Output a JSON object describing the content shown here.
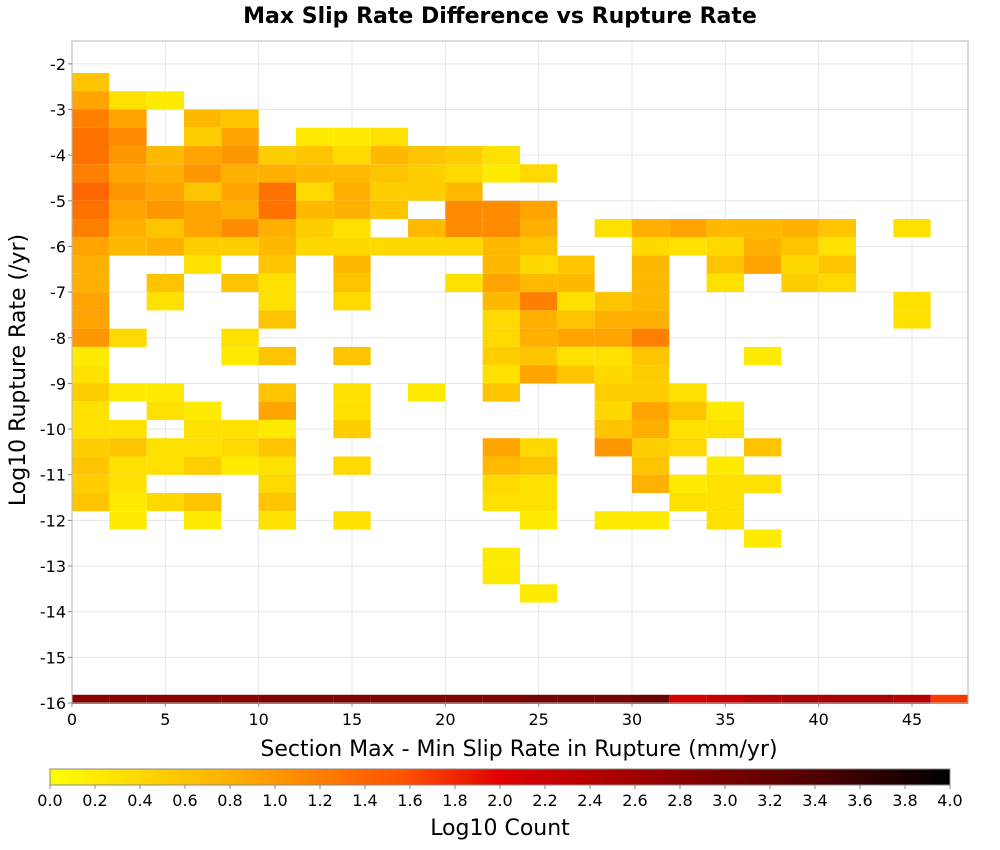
{
  "chart_data": {
    "type": "heatmap",
    "title": "Max Slip Rate Difference vs Rupture Rate",
    "xlabel": "Section Max - Min Slip Rate in Rupture (mm/yr)",
    "ylabel": "Log10 Rupture Rate (/yr)",
    "xlim": [
      0,
      48
    ],
    "ylim": [
      -16,
      -1.5
    ],
    "x_ticks": [
      0,
      5,
      10,
      15,
      20,
      25,
      30,
      35,
      40,
      45
    ],
    "y_ticks": [
      -2,
      -3,
      -4,
      -5,
      -6,
      -7,
      -8,
      -9,
      -10,
      -11,
      -12,
      -13,
      -14,
      -15,
      -16
    ],
    "bin_width": 2,
    "bin_height": 0.4,
    "grid": true,
    "colorbar": {
      "label": "Log10 Count",
      "range": [
        0.0,
        4.0
      ],
      "ticks": [
        "0.0",
        "0.2",
        "0.4",
        "0.6",
        "0.8",
        "1.0",
        "1.2",
        "1.4",
        "1.6",
        "1.8",
        "2.0",
        "2.2",
        "2.4",
        "2.6",
        "2.8",
        "3.0",
        "3.2",
        "3.4",
        "3.6",
        "3.8",
        "4.0"
      ],
      "stops": [
        {
          "v": 0.0,
          "color": "#ffff00"
        },
        {
          "v": 0.8,
          "color": "#ffb000"
        },
        {
          "v": 1.6,
          "color": "#ff4d00"
        },
        {
          "v": 2.0,
          "color": "#e00000"
        },
        {
          "v": 2.8,
          "color": "#8a0000"
        },
        {
          "v": 3.4,
          "color": "#500000"
        },
        {
          "v": 4.0,
          "color": "#000000"
        }
      ]
    },
    "bottom_row": {
      "y": -16,
      "values": [
        2.8,
        2.8,
        2.8,
        2.8,
        2.8,
        2.9,
        2.9,
        2.9,
        2.9,
        2.9,
        2.9,
        2.9,
        3.0,
        3.0,
        3.0,
        3.1,
        2.1,
        2.2,
        2.4,
        2.5,
        2.5,
        2.5,
        2.4,
        1.7
      ]
    },
    "rows": [
      {
        "y": -2.2,
        "cells": [
          [
            0,
            0.6
          ]
        ]
      },
      {
        "y": -2.6,
        "cells": [
          [
            0,
            0.9
          ],
          [
            2,
            0.3
          ],
          [
            4,
            0.2
          ]
        ]
      },
      {
        "y": -3.0,
        "cells": [
          [
            0,
            1.2
          ],
          [
            2,
            0.9
          ],
          [
            6,
            0.7
          ],
          [
            8,
            0.6
          ]
        ]
      },
      {
        "y": -3.4,
        "cells": [
          [
            0,
            1.3
          ],
          [
            2,
            1.1
          ],
          [
            6,
            0.5
          ],
          [
            8,
            0.9
          ],
          [
            12,
            0.2
          ],
          [
            14,
            0.2
          ],
          [
            16,
            0.3
          ]
        ]
      },
      {
        "y": -3.8,
        "cells": [
          [
            0,
            1.3
          ],
          [
            2,
            1.0
          ],
          [
            4,
            0.7
          ],
          [
            6,
            0.9
          ],
          [
            8,
            1.0
          ],
          [
            10,
            0.5
          ],
          [
            12,
            0.6
          ],
          [
            14,
            0.4
          ],
          [
            16,
            0.7
          ],
          [
            18,
            0.6
          ],
          [
            20,
            0.5
          ],
          [
            22,
            0.3
          ]
        ]
      },
      {
        "y": -4.2,
        "cells": [
          [
            0,
            1.2
          ],
          [
            2,
            0.9
          ],
          [
            4,
            0.8
          ],
          [
            6,
            1.0
          ],
          [
            8,
            0.8
          ],
          [
            10,
            0.8
          ],
          [
            12,
            0.7
          ],
          [
            14,
            0.7
          ],
          [
            16,
            0.6
          ],
          [
            18,
            0.5
          ],
          [
            20,
            0.4
          ],
          [
            22,
            0.2
          ],
          [
            24,
            0.4
          ]
        ]
      },
      {
        "y": -4.6,
        "cells": [
          [
            0,
            1.4
          ],
          [
            2,
            1.0
          ],
          [
            4,
            0.9
          ],
          [
            6,
            0.6
          ],
          [
            8,
            0.9
          ],
          [
            10,
            1.3
          ],
          [
            12,
            0.4
          ],
          [
            14,
            0.8
          ],
          [
            16,
            0.5
          ],
          [
            18,
            0.5
          ],
          [
            20,
            0.7
          ]
        ]
      },
      {
        "y": -5.0,
        "cells": [
          [
            0,
            1.3
          ],
          [
            2,
            0.9
          ],
          [
            4,
            1.0
          ],
          [
            6,
            0.9
          ],
          [
            8,
            0.8
          ],
          [
            10,
            1.3
          ],
          [
            12,
            0.7
          ],
          [
            14,
            0.8
          ],
          [
            16,
            0.6
          ],
          [
            20,
            1.1
          ],
          [
            22,
            1.1
          ],
          [
            24,
            0.9
          ]
        ]
      },
      {
        "y": -5.4,
        "cells": [
          [
            0,
            1.2
          ],
          [
            2,
            0.8
          ],
          [
            4,
            0.6
          ],
          [
            6,
            0.9
          ],
          [
            8,
            1.1
          ],
          [
            10,
            0.8
          ],
          [
            12,
            0.5
          ],
          [
            14,
            0.3
          ],
          [
            18,
            0.7
          ],
          [
            20,
            1.1
          ],
          [
            22,
            1.1
          ],
          [
            24,
            0.8
          ],
          [
            28,
            0.3
          ],
          [
            30,
            0.8
          ],
          [
            32,
            0.9
          ],
          [
            34,
            0.7
          ],
          [
            36,
            0.7
          ],
          [
            38,
            0.8
          ],
          [
            40,
            0.6
          ],
          [
            44,
            0.3
          ]
        ]
      },
      {
        "y": -5.8,
        "cells": [
          [
            0,
            0.9
          ],
          [
            2,
            0.7
          ],
          [
            4,
            0.8
          ],
          [
            6,
            0.5
          ],
          [
            8,
            0.5
          ],
          [
            10,
            0.7
          ],
          [
            12,
            0.4
          ],
          [
            14,
            0.4
          ],
          [
            16,
            0.4
          ],
          [
            18,
            0.4
          ],
          [
            20,
            0.4
          ],
          [
            22,
            0.7
          ],
          [
            24,
            0.6
          ],
          [
            30,
            0.4
          ],
          [
            32,
            0.3
          ],
          [
            34,
            0.4
          ],
          [
            36,
            0.8
          ],
          [
            38,
            0.6
          ],
          [
            40,
            0.3
          ]
        ]
      },
      {
        "y": -6.2,
        "cells": [
          [
            0,
            0.8
          ],
          [
            6,
            0.3
          ],
          [
            10,
            0.6
          ],
          [
            14,
            0.7
          ],
          [
            22,
            0.7
          ],
          [
            24,
            0.4
          ],
          [
            26,
            0.6
          ],
          [
            30,
            0.7
          ],
          [
            34,
            0.6
          ],
          [
            36,
            0.9
          ],
          [
            38,
            0.4
          ],
          [
            40,
            0.6
          ]
        ]
      },
      {
        "y": -6.6,
        "cells": [
          [
            0,
            0.8
          ],
          [
            4,
            0.6
          ],
          [
            8,
            0.6
          ],
          [
            10,
            0.3
          ],
          [
            14,
            0.6
          ],
          [
            20,
            0.3
          ],
          [
            22,
            0.9
          ],
          [
            24,
            0.7
          ],
          [
            26,
            0.7
          ],
          [
            30,
            0.7
          ],
          [
            34,
            0.3
          ],
          [
            38,
            0.5
          ],
          [
            40,
            0.4
          ]
        ]
      },
      {
        "y": -7.0,
        "cells": [
          [
            0,
            0.9
          ],
          [
            4,
            0.3
          ],
          [
            10,
            0.3
          ],
          [
            14,
            0.4
          ],
          [
            22,
            0.7
          ],
          [
            24,
            1.2
          ],
          [
            26,
            0.3
          ],
          [
            28,
            0.6
          ],
          [
            30,
            0.7
          ],
          [
            44,
            0.3
          ]
        ]
      },
      {
        "y": -7.4,
        "cells": [
          [
            0,
            0.9
          ],
          [
            10,
            0.6
          ],
          [
            22,
            0.4
          ],
          [
            24,
            0.8
          ],
          [
            26,
            0.6
          ],
          [
            28,
            0.8
          ],
          [
            30,
            0.8
          ],
          [
            44,
            0.3
          ]
        ]
      },
      {
        "y": -7.8,
        "cells": [
          [
            0,
            1.0
          ],
          [
            2,
            0.4
          ],
          [
            8,
            0.3
          ],
          [
            22,
            0.4
          ],
          [
            24,
            0.8
          ],
          [
            26,
            0.9
          ],
          [
            28,
            0.9
          ],
          [
            30,
            1.2
          ]
        ]
      },
      {
        "y": -8.2,
        "cells": [
          [
            0,
            0.2
          ],
          [
            8,
            0.2
          ],
          [
            10,
            0.6
          ],
          [
            14,
            0.6
          ],
          [
            22,
            0.5
          ],
          [
            24,
            0.6
          ],
          [
            26,
            0.3
          ],
          [
            28,
            0.3
          ],
          [
            30,
            0.6
          ],
          [
            36,
            0.2
          ]
        ]
      },
      {
        "y": -8.6,
        "cells": [
          [
            0,
            0.3
          ],
          [
            22,
            0.3
          ],
          [
            24,
            0.9
          ],
          [
            26,
            0.6
          ],
          [
            28,
            0.4
          ],
          [
            30,
            0.5
          ]
        ]
      },
      {
        "y": -9.0,
        "cells": [
          [
            0,
            0.5
          ],
          [
            2,
            0.2
          ],
          [
            4,
            0.2
          ],
          [
            10,
            0.6
          ],
          [
            14,
            0.3
          ],
          [
            18,
            0.2
          ],
          [
            22,
            0.6
          ],
          [
            28,
            0.5
          ],
          [
            30,
            0.5
          ],
          [
            32,
            0.3
          ]
        ]
      },
      {
        "y": -9.4,
        "cells": [
          [
            0,
            0.3
          ],
          [
            4,
            0.3
          ],
          [
            6,
            0.2
          ],
          [
            10,
            0.9
          ],
          [
            14,
            0.3
          ],
          [
            28,
            0.4
          ],
          [
            30,
            0.9
          ],
          [
            32,
            0.6
          ],
          [
            34,
            0.2
          ]
        ]
      },
      {
        "y": -9.8,
        "cells": [
          [
            0,
            0.3
          ],
          [
            2,
            0.3
          ],
          [
            6,
            0.3
          ],
          [
            8,
            0.3
          ],
          [
            10,
            0.2
          ],
          [
            14,
            0.5
          ],
          [
            28,
            0.6
          ],
          [
            30,
            0.8
          ],
          [
            32,
            0.3
          ],
          [
            34,
            0.3
          ]
        ]
      },
      {
        "y": -10.2,
        "cells": [
          [
            0,
            0.5
          ],
          [
            2,
            0.6
          ],
          [
            4,
            0.3
          ],
          [
            6,
            0.3
          ],
          [
            8,
            0.4
          ],
          [
            10,
            0.6
          ],
          [
            22,
            0.9
          ],
          [
            24,
            0.4
          ],
          [
            28,
            1.0
          ],
          [
            30,
            0.5
          ],
          [
            32,
            0.4
          ],
          [
            36,
            0.6
          ]
        ]
      },
      {
        "y": -10.6,
        "cells": [
          [
            0,
            0.6
          ],
          [
            2,
            0.3
          ],
          [
            4,
            0.3
          ],
          [
            6,
            0.5
          ],
          [
            8,
            0.2
          ],
          [
            10,
            0.3
          ],
          [
            14,
            0.4
          ],
          [
            22,
            0.7
          ],
          [
            24,
            0.6
          ],
          [
            30,
            0.6
          ],
          [
            34,
            0.2
          ]
        ]
      },
      {
        "y": -11.0,
        "cells": [
          [
            0,
            0.5
          ],
          [
            2,
            0.3
          ],
          [
            10,
            0.4
          ],
          [
            22,
            0.4
          ],
          [
            24,
            0.3
          ],
          [
            30,
            0.8
          ],
          [
            32,
            0.2
          ],
          [
            34,
            0.3
          ],
          [
            36,
            0.3
          ]
        ]
      },
      {
        "y": -11.4,
        "cells": [
          [
            0,
            0.6
          ],
          [
            2,
            0.2
          ],
          [
            4,
            0.4
          ],
          [
            6,
            0.6
          ],
          [
            10,
            0.6
          ],
          [
            22,
            0.3
          ],
          [
            24,
            0.3
          ],
          [
            32,
            0.3
          ],
          [
            34,
            0.3
          ]
        ]
      },
      {
        "y": -11.8,
        "cells": [
          [
            2,
            0.2
          ],
          [
            6,
            0.2
          ],
          [
            10,
            0.3
          ],
          [
            14,
            0.3
          ],
          [
            24,
            0.2
          ],
          [
            28,
            0.2
          ],
          [
            30,
            0.2
          ],
          [
            34,
            0.3
          ]
        ]
      },
      {
        "y": -12.2,
        "cells": [
          [
            36,
            0.2
          ]
        ]
      },
      {
        "y": -12.6,
        "cells": [
          [
            22,
            0.2
          ]
        ]
      },
      {
        "y": -13.0,
        "cells": [
          [
            22,
            0.2
          ]
        ]
      },
      {
        "y": -13.4,
        "cells": [
          [
            24,
            0.2
          ]
        ]
      }
    ]
  }
}
